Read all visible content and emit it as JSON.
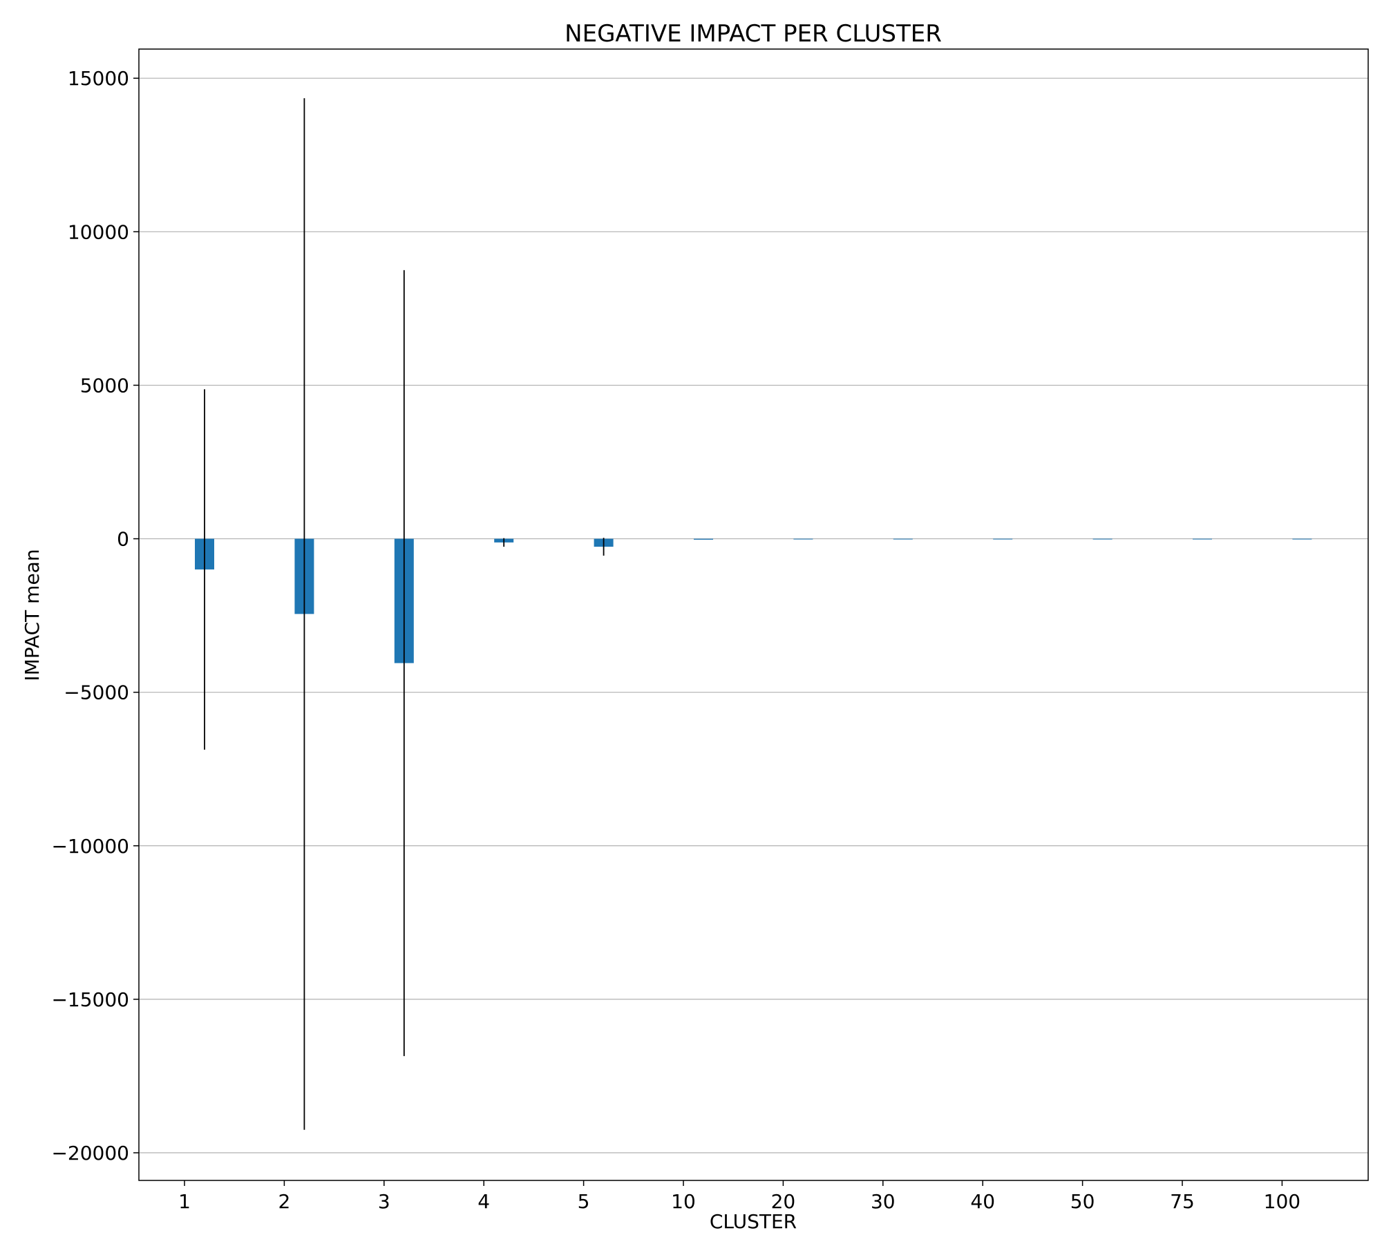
{
  "chart_data": {
    "type": "bar",
    "title": "NEGATIVE IMPACT PER CLUSTER",
    "xlabel": "CLUSTER",
    "ylabel": "IMPACT mean",
    "categories": [
      "1",
      "2",
      "3",
      "4",
      "5",
      "10",
      "20",
      "30",
      "40",
      "50",
      "75",
      "100"
    ],
    "values": [
      -1000,
      -2450,
      -4050,
      -120,
      -260,
      -30,
      0,
      0,
      0,
      0,
      0,
      0
    ],
    "error": [
      5870,
      16800,
      12800,
      140,
      290,
      0,
      0,
      0,
      0,
      0,
      0,
      0
    ],
    "ylim": [
      -20900,
      15950
    ],
    "yticks": [
      -20000,
      -15000,
      -10000,
      -5000,
      0,
      5000,
      10000,
      15000
    ],
    "ytick_labels": [
      "−20000",
      "−15000",
      "−10000",
      "−5000",
      "0",
      "5000",
      "10000",
      "15000"
    ],
    "grid": "horizontal",
    "bar_color": "#1f77b4",
    "error_color": "#000000",
    "grid_color": "#b0b0b0"
  }
}
